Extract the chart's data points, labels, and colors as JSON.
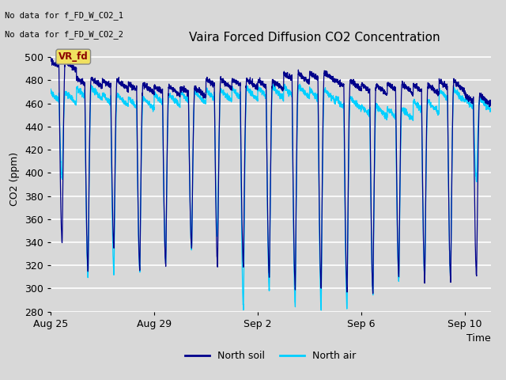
{
  "title": "Vaira Forced Diffusion CO2 Concentration",
  "xlabel": "Time",
  "ylabel": "CO2 (ppm)",
  "ylim": [
    280,
    510
  ],
  "yticks": [
    280,
    300,
    320,
    340,
    360,
    380,
    400,
    420,
    440,
    460,
    480,
    500
  ],
  "bg_color": "#d8d8d8",
  "plot_bg_color": "#d8d8d8",
  "grid_color": "#ffffff",
  "north_soil_color": "#00008B",
  "north_air_color": "#00CFFF",
  "no_data_text1": "No data for f_FD_W_CO2_1",
  "no_data_text2": "No data for f_FD_W_CO2_2",
  "vr_fd_label": "VR_fd",
  "legend_soil": "North soil",
  "legend_air": "North air",
  "xtick_labels": [
    "Aug 25",
    "Aug 29",
    "Sep 2",
    "Sep 6",
    "Sep 10"
  ],
  "num_days": 17,
  "pts_per_day": 200
}
